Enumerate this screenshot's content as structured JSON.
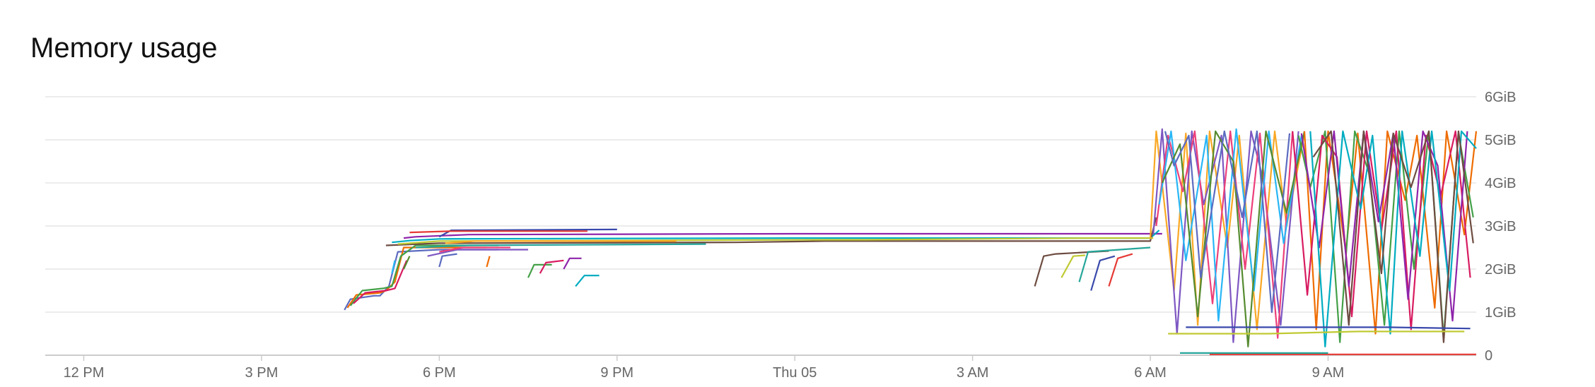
{
  "chart_data": {
    "type": "line",
    "title": "Memory usage",
    "xlabel": "",
    "ylabel": "",
    "x_ticks": [
      {
        "label": "12 PM",
        "hours": 0
      },
      {
        "label": "3 PM",
        "hours": 3
      },
      {
        "label": "6 PM",
        "hours": 6
      },
      {
        "label": "9 PM",
        "hours": 9
      },
      {
        "label": "Thu 05",
        "hours": 12
      },
      {
        "label": "3 AM",
        "hours": 15
      },
      {
        "label": "6 AM",
        "hours": 18
      },
      {
        "label": "9 AM",
        "hours": 21
      }
    ],
    "xlim_hours": [
      -0.65,
      23.5
    ],
    "y_ticks": [
      {
        "label": "0",
        "value": 0
      },
      {
        "label": "1GiB",
        "value": 1
      },
      {
        "label": "2GiB",
        "value": 2
      },
      {
        "label": "3GiB",
        "value": 3
      },
      {
        "label": "4GiB",
        "value": 4
      },
      {
        "label": "5GiB",
        "value": 5
      },
      {
        "label": "6GiB",
        "value": 6
      }
    ],
    "ylim": [
      0,
      6
    ],
    "grid": true,
    "y_axis_position": "right",
    "palette": [
      "#5c6bc0",
      "#ef6c00",
      "#43a047",
      "#d81b60",
      "#8e24aa",
      "#00acc1",
      "#6d4c41",
      "#c0ca33",
      "#3949ab",
      "#e53935",
      "#26a69a",
      "#f9a825",
      "#7e57c2",
      "#ec407a",
      "#29b6f6",
      "#558b2f"
    ],
    "series": [
      {
        "x": [
          4.4,
          4.5,
          4.9,
          5.0,
          5.15,
          5.3,
          6.0,
          7.0
        ],
        "y": [
          1.05,
          1.3,
          1.38,
          1.38,
          1.6,
          2.4,
          2.45,
          2.45
        ]
      },
      {
        "x": [
          4.45,
          4.6,
          5.0,
          5.1,
          5.25,
          5.4,
          6.2,
          6.8
        ],
        "y": [
          1.1,
          1.4,
          1.45,
          1.5,
          1.7,
          2.5,
          2.5,
          2.5
        ]
      },
      {
        "x": [
          4.5,
          4.7,
          5.05,
          5.2,
          5.35,
          5.6,
          7.0
        ],
        "y": [
          1.15,
          1.5,
          1.55,
          1.6,
          2.3,
          2.55,
          2.55
        ]
      },
      {
        "x": [
          4.55,
          4.75,
          5.1,
          5.25,
          5.45
        ],
        "y": [
          1.2,
          1.45,
          1.5,
          1.55,
          2.2
        ]
      },
      {
        "x": [
          5.4,
          5.6,
          6.5,
          12.0,
          18.0,
          18.2
        ],
        "y": [
          2.72,
          2.75,
          2.8,
          2.82,
          2.82,
          2.82
        ]
      },
      {
        "x": [
          5.2,
          5.5,
          6.0,
          12.0,
          18.0,
          18.15
        ],
        "y": [
          2.62,
          2.66,
          2.7,
          2.72,
          2.72,
          2.9
        ]
      },
      {
        "x": [
          5.1,
          6.0,
          11.0,
          12.5,
          18.0,
          18.1
        ],
        "y": [
          2.55,
          2.6,
          2.62,
          2.65,
          2.65,
          3.2
        ]
      },
      {
        "x": [
          5.3,
          6.0,
          12.5,
          13.2,
          17.0,
          18.05
        ],
        "y": [
          2.58,
          2.65,
          2.68,
          2.68,
          2.72,
          2.72
        ]
      },
      {
        "x": [
          6.0,
          6.2,
          9.0
        ],
        "y": [
          2.75,
          2.9,
          2.92
        ]
      },
      {
        "x": [
          5.5,
          6.2,
          8.5
        ],
        "y": [
          2.85,
          2.88,
          2.88
        ]
      },
      {
        "x": [
          5.6,
          6.5,
          10.5
        ],
        "y": [
          2.5,
          2.55,
          2.58
        ]
      },
      {
        "x": [
          6.1,
          6.6,
          10.0
        ],
        "y": [
          2.6,
          2.65,
          2.65
        ]
      },
      {
        "x": [
          5.8,
          6.3,
          7.5
        ],
        "y": [
          2.3,
          2.45,
          2.45
        ]
      },
      {
        "x": [
          6.0,
          6.4,
          7.2
        ],
        "y": [
          2.4,
          2.5,
          2.5
        ]
      },
      {
        "x": [
          5.2,
          5.25
        ],
        "y": [
          1.9,
          2.2
        ]
      },
      {
        "x": [
          5.4,
          5.5
        ],
        "y": [
          2.0,
          2.3
        ]
      },
      {
        "x": [
          6.0,
          6.05,
          6.3
        ],
        "y": [
          2.05,
          2.3,
          2.35
        ]
      },
      {
        "x": [
          6.8,
          6.85
        ],
        "y": [
          2.05,
          2.3
        ]
      },
      {
        "x": [
          7.5,
          7.6,
          7.9
        ],
        "y": [
          1.8,
          2.1,
          2.1
        ]
      },
      {
        "x": [
          7.7,
          7.8,
          8.1
        ],
        "y": [
          1.9,
          2.15,
          2.2
        ]
      },
      {
        "x": [
          8.1,
          8.2,
          8.4
        ],
        "y": [
          2.0,
          2.25,
          2.25
        ]
      },
      {
        "x": [
          8.3,
          8.45,
          8.7
        ],
        "y": [
          1.6,
          1.85,
          1.85
        ]
      },
      {
        "x": [
          16.05,
          16.2,
          16.4,
          17.3
        ],
        "y": [
          1.6,
          2.3,
          2.35,
          2.42
        ]
      },
      {
        "x": [
          16.5,
          16.7,
          16.9
        ],
        "y": [
          1.8,
          2.3,
          2.32
        ]
      },
      {
        "x": [
          17.0,
          17.15,
          17.4
        ],
        "y": [
          1.5,
          2.2,
          2.3
        ]
      },
      {
        "x": [
          17.3,
          17.45,
          17.7
        ],
        "y": [
          1.6,
          2.25,
          2.35
        ]
      },
      {
        "x": [
          16.8,
          16.95,
          18.0
        ],
        "y": [
          1.7,
          2.4,
          2.5
        ]
      },
      {
        "x": [
          18.0,
          18.1,
          18.4,
          18.6,
          18.8,
          19.0,
          19.3,
          19.5,
          19.8,
          20.1,
          20.3,
          20.6
        ],
        "y": [
          2.7,
          5.2,
          1.5,
          5.15,
          0.7,
          5.2,
          2.5,
          5.1,
          0.6,
          5.2,
          3.0,
          5.15
        ]
      },
      {
        "x": [
          18.05,
          18.2,
          18.45,
          18.7,
          18.9,
          19.2,
          19.4,
          19.7,
          19.9,
          20.2,
          20.5
        ],
        "y": [
          2.8,
          5.25,
          0.5,
          5.2,
          3.5,
          5.1,
          0.3,
          5.2,
          4.1,
          0.7,
          5.2
        ]
      },
      {
        "x": [
          18.1,
          18.3,
          18.55,
          18.75,
          19.05,
          19.35,
          19.6,
          19.85,
          20.15,
          20.4
        ],
        "y": [
          3.0,
          5.1,
          3.8,
          5.2,
          1.2,
          5.2,
          2.0,
          5.15,
          0.4,
          5.2
        ]
      },
      {
        "x": [
          18.15,
          18.35,
          18.6,
          18.95,
          19.15,
          19.45,
          19.75,
          20.0,
          20.25,
          20.55
        ],
        "y": [
          3.5,
          5.2,
          2.2,
          5.1,
          0.8,
          5.25,
          1.5,
          5.2,
          2.6,
          5.1
        ]
      },
      {
        "x": [
          18.2,
          18.5,
          18.8,
          19.1,
          19.4,
          19.65,
          19.95,
          20.3,
          20.6
        ],
        "y": [
          4.0,
          4.9,
          0.9,
          5.2,
          4.5,
          0.2,
          5.2,
          3.3,
          5.2
        ]
      },
      {
        "x": [
          18.25,
          18.4,
          18.65,
          18.85,
          19.25,
          19.55,
          19.8,
          20.05,
          20.35
        ],
        "y": [
          5.2,
          4.4,
          5.1,
          1.8,
          5.2,
          3.2,
          5.2,
          1.0,
          5.15
        ]
      },
      {
        "x": [
          20.6,
          20.8,
          21.0,
          21.3,
          21.5,
          21.8,
          22.0,
          22.3,
          22.5,
          22.8,
          23.0,
          23.3,
          23.5
        ],
        "y": [
          5.2,
          0.6,
          5.2,
          2.4,
          5.15,
          0.5,
          5.2,
          3.6,
          5.1,
          1.1,
          5.2,
          2.8,
          5.2
        ]
      },
      {
        "x": [
          20.5,
          20.7,
          20.95,
          21.2,
          21.45,
          21.7,
          21.95,
          22.2,
          22.45,
          22.7,
          22.95,
          23.2,
          23.45
        ],
        "y": [
          5.1,
          3.9,
          5.2,
          0.3,
          5.2,
          4.2,
          0.7,
          5.2,
          2.0,
          5.2,
          0.4,
          5.15,
          3.2
        ]
      },
      {
        "x": [
          20.4,
          20.65,
          20.9,
          21.15,
          21.4,
          21.65,
          21.9,
          22.15,
          22.4,
          22.65,
          22.9,
          23.15,
          23.4
        ],
        "y": [
          5.2,
          1.4,
          5.1,
          4.6,
          0.9,
          5.2,
          2.9,
          5.2,
          0.6,
          5.1,
          3.7,
          5.2,
          1.8
        ]
      },
      {
        "x": [
          20.55,
          20.85,
          21.1,
          21.35,
          21.6,
          21.85,
          22.1,
          22.35,
          22.6,
          22.85,
          23.1,
          23.35
        ],
        "y": [
          5.15,
          2.5,
          5.2,
          1.6,
          5.2,
          3.1,
          5.15,
          1.3,
          5.2,
          4.4,
          0.8,
          5.2
        ]
      },
      {
        "x": [
          20.7,
          20.95,
          21.25,
          21.55,
          21.75,
          22.05,
          22.25,
          22.55,
          22.75,
          23.05,
          23.25,
          23.5
        ],
        "y": [
          5.2,
          0.2,
          5.2,
          3.4,
          5.1,
          0.5,
          5.2,
          2.3,
          5.2,
          1.5,
          5.2,
          4.8
        ]
      },
      {
        "x": [
          20.75,
          21.05,
          21.35,
          21.6,
          21.9,
          22.1,
          22.4,
          22.7,
          22.95,
          23.2,
          23.45
        ],
        "y": [
          4.6,
          5.2,
          0.7,
          5.2,
          1.9,
          5.15,
          3.9,
          5.2,
          0.3,
          5.2,
          2.6
        ]
      },
      {
        "x": [
          18.3,
          20.0,
          21.5,
          23.3
        ],
        "y": [
          0.5,
          0.5,
          0.55,
          0.55
        ]
      },
      {
        "x": [
          18.6,
          20.5,
          22.0,
          23.4
        ],
        "y": [
          0.65,
          0.65,
          0.65,
          0.62
        ]
      },
      {
        "x": [
          19.0,
          21.0,
          23.2,
          23.5
        ],
        "y": [
          0.02,
          0.02,
          0.02,
          0.02
        ]
      },
      {
        "x": [
          18.5,
          20.0,
          21.0
        ],
        "y": [
          0.05,
          0.05,
          0.05
        ]
      }
    ]
  }
}
